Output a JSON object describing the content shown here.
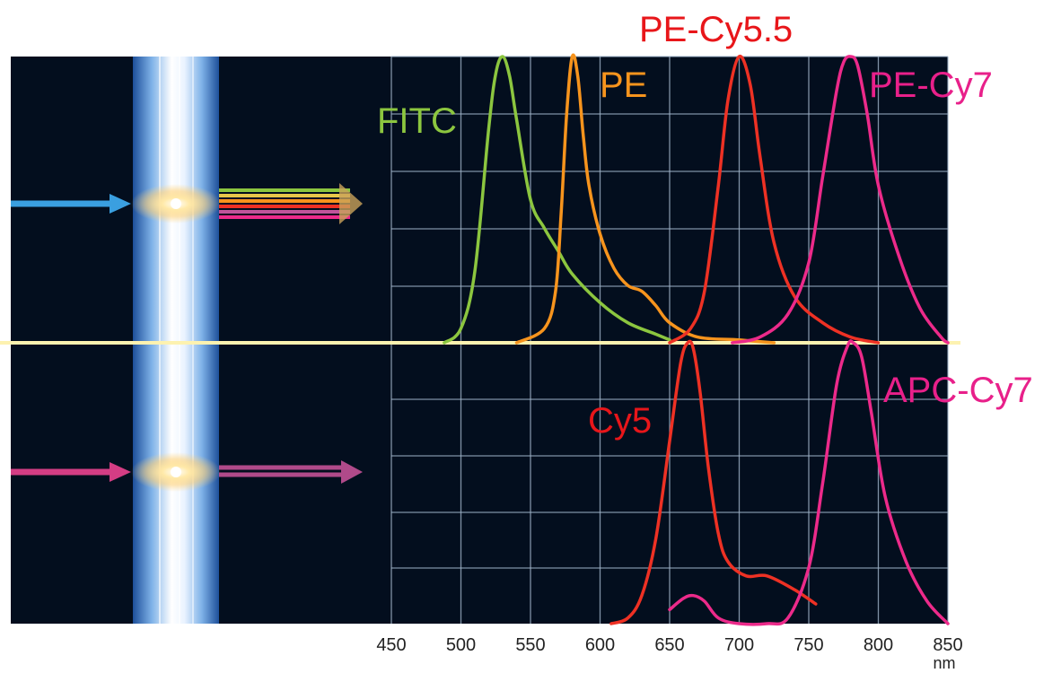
{
  "chart_data": [
    {
      "type": "line",
      "panel": "top",
      "x_unit": "nm",
      "xlim": [
        450,
        850
      ],
      "ylim": [
        0,
        1
      ],
      "grid": true,
      "series": [
        {
          "name": "FITC",
          "color": "#8cc63f",
          "x": [
            488,
            500,
            510,
            520,
            525,
            530,
            535,
            540,
            550,
            560,
            570,
            580,
            600,
            620,
            640,
            650
          ],
          "y": [
            0.0,
            0.05,
            0.25,
            0.75,
            0.94,
            1.0,
            0.93,
            0.78,
            0.5,
            0.4,
            0.32,
            0.24,
            0.14,
            0.07,
            0.03,
            0.01
          ]
        },
        {
          "name": "PE",
          "color": "#f7941d",
          "x": [
            540,
            560,
            568,
            572,
            576,
            580,
            584,
            588,
            592,
            600,
            610,
            620,
            630,
            640,
            650,
            670,
            700,
            725
          ],
          "y": [
            0.0,
            0.05,
            0.18,
            0.45,
            0.8,
            1.0,
            0.93,
            0.72,
            0.55,
            0.38,
            0.26,
            0.2,
            0.18,
            0.13,
            0.07,
            0.02,
            0.01,
            0.0
          ]
        },
        {
          "name": "PE-Cy5.5",
          "color": "#ee3124",
          "x": [
            650,
            665,
            675,
            685,
            692,
            700,
            708,
            715,
            725,
            740,
            760,
            780,
            800
          ],
          "y": [
            0.0,
            0.05,
            0.18,
            0.55,
            0.85,
            1.0,
            0.9,
            0.65,
            0.35,
            0.16,
            0.07,
            0.02,
            0.0
          ]
        },
        {
          "name": "PE-Cy7",
          "color": "#ec2a8a",
          "x": [
            695,
            715,
            735,
            750,
            760,
            770,
            775,
            780,
            785,
            792,
            800,
            815,
            830,
            845,
            850
          ],
          "y": [
            0.0,
            0.02,
            0.1,
            0.28,
            0.58,
            0.88,
            0.98,
            1.0,
            0.97,
            0.8,
            0.55,
            0.3,
            0.12,
            0.02,
            0.0
          ]
        }
      ]
    },
    {
      "type": "line",
      "panel": "bottom",
      "x_unit": "nm",
      "xlim": [
        450,
        850
      ],
      "ylim": [
        0,
        1
      ],
      "grid": true,
      "series": [
        {
          "name": "Cy5",
          "color": "#ee3124",
          "x": [
            608,
            620,
            630,
            640,
            650,
            658,
            663,
            667,
            672,
            678,
            685,
            692,
            705,
            720,
            740,
            755
          ],
          "y": [
            0.0,
            0.02,
            0.1,
            0.3,
            0.65,
            0.93,
            1.0,
            0.98,
            0.82,
            0.55,
            0.32,
            0.22,
            0.17,
            0.17,
            0.12,
            0.07
          ]
        },
        {
          "name": "APC-Cy7",
          "color": "#ec2a8a",
          "x": [
            650,
            660,
            667,
            675,
            685,
            700,
            720,
            735,
            750,
            760,
            770,
            778,
            782,
            788,
            795,
            805,
            820,
            835,
            850
          ],
          "y": [
            0.05,
            0.09,
            0.1,
            0.08,
            0.02,
            0.0,
            0.0,
            0.02,
            0.2,
            0.5,
            0.85,
            0.99,
            1.0,
            0.95,
            0.75,
            0.45,
            0.22,
            0.08,
            0.0
          ]
        }
      ]
    }
  ],
  "tick_labels": [
    "450",
    "500",
    "550",
    "600",
    "650",
    "700",
    "750",
    "800",
    "850"
  ],
  "unit_label": "nm",
  "colors": {
    "background": "#030e1e",
    "grid": "#9fb3c8",
    "divider": "#fdf2b0",
    "label_FITC": "#8cc63f",
    "label_PE": "#f7941d",
    "label_PE-Cy5.5": "#e8161a",
    "label_PE-Cy7": "#e8208a",
    "label_Cy5": "#e8161a",
    "label_APC-Cy7": "#e8208a"
  }
}
